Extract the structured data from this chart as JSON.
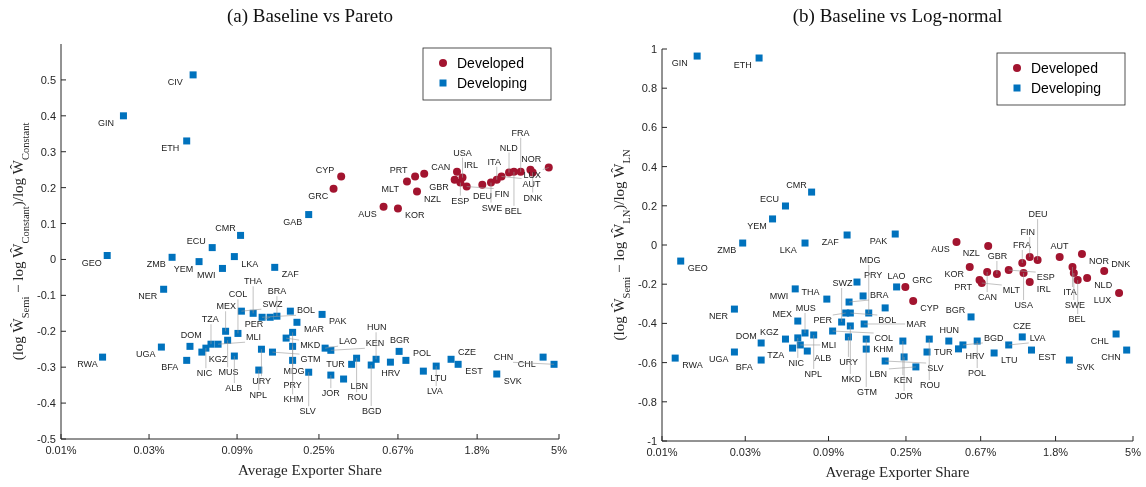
{
  "chart_data": [
    {
      "type": "scatter",
      "title": "(a) Baseline vs Pareto",
      "xlabel": "Average Exporter Share",
      "ylabel": "(log Ŵ$_{Semi}$ − log Ŵ$_{Constant}$)/log Ŵ$_{Constant}$",
      "log": "x",
      "legend": "top right",
      "grid": false,
      "xlim": [
        0.01,
        5
      ],
      "xticks": [
        {
          "value": 0.01,
          "label": "0.01%"
        },
        {
          "value": 0.03,
          "label": "0.03%"
        },
        {
          "value": 0.09,
          "label": "0.09%"
        },
        {
          "value": 0.25,
          "label": "0.25%"
        },
        {
          "value": 0.67,
          "label": "0.67%"
        },
        {
          "value": 1.8,
          "label": "1.8%"
        },
        {
          "value": 5,
          "label": "5%"
        }
      ],
      "ylim": [
        -0.5,
        0.6
      ],
      "yticks": [
        -0.5,
        -0.4,
        -0.3,
        -0.2,
        -0.1,
        0,
        0.1,
        0.2,
        0.3,
        0.4,
        0.5
      ],
      "series": [
        {
          "name": "Developed",
          "color": "#a2142f",
          "marker": "circle",
          "x": [
            0.33,
            0.3,
            0.56,
            0.67,
            0.85,
            0.75,
            0.83,
            0.93,
            1.4,
            1.36,
            1.46,
            1.5,
            1.58,
            1.92,
            2.14,
            2.3,
            2.44,
            2.68,
            2.85,
            3.5,
            3.1,
            3.6,
            4.4
          ],
          "values": [
            0.231,
            0.197,
            0.147,
            0.142,
            0.189,
            0.217,
            0.231,
            0.239,
            0.244,
            0.222,
            0.214,
            0.228,
            0.203,
            0.208,
            0.214,
            0.222,
            0.231,
            0.242,
            0.244,
            0.25,
            0.244,
            0.242,
            0.256
          ]
        },
        {
          "name": "Developing",
          "color": "#0072bd",
          "marker": "square",
          "x": [
            0.052,
            0.0218,
            0.048,
            0.22,
            0.094,
            0.066,
            0.087,
            0.0178,
            0.04,
            0.056,
            0.075,
            0.144,
            0.036,
            0.0168,
            0.035,
            0.05,
            0.048,
            0.058,
            0.061,
            0.065,
            0.071,
            0.078,
            0.08,
            0.087,
            0.091,
            0.095,
            0.11,
            0.123,
            0.136,
            0.148,
            0.175,
            0.19,
            0.26,
            0.18,
            0.166,
            0.18,
            0.14,
            0.122,
            0.118,
            0.18,
            0.27,
            0.29,
            0.22,
            0.29,
            0.34,
            0.4,
            0.376,
            0.51,
            0.48,
            0.61,
            0.74,
            0.68,
            0.92,
            1.08,
            1.3,
            1.42,
            2.3,
            4.1,
            4.7
          ],
          "values": [
            0.514,
            0.4,
            0.33,
            0.125,
            0.067,
            0.033,
            0.008,
            0.011,
            0.006,
            -0.006,
            -0.025,
            -0.022,
            -0.083,
            -0.272,
            -0.244,
            -0.242,
            -0.281,
            -0.258,
            -0.247,
            -0.236,
            -0.236,
            -0.2,
            -0.225,
            -0.269,
            -0.206,
            -0.144,
            -0.15,
            -0.161,
            -0.161,
            -0.158,
            -0.144,
            -0.175,
            -0.153,
            -0.203,
            -0.219,
            -0.242,
            -0.258,
            -0.25,
            -0.308,
            -0.281,
            -0.247,
            -0.253,
            -0.314,
            -0.322,
            -0.333,
            -0.275,
            -0.292,
            -0.278,
            -0.294,
            -0.286,
            -0.281,
            -0.256,
            -0.311,
            -0.297,
            -0.278,
            -0.292,
            -0.319,
            -0.272,
            -0.292
          ]
        }
      ],
      "annotations": [
        {
          "text": "CYP",
          "x": 0.33,
          "y": 0.231
        },
        {
          "text": "GRC",
          "x": 0.3,
          "y": 0.197
        },
        {
          "text": "AUS",
          "x": 0.56,
          "y": 0.147
        },
        {
          "text": "KOR",
          "x": 0.67,
          "y": 0.142
        },
        {
          "text": "NZL",
          "x": 0.85,
          "y": 0.189
        },
        {
          "text": "MLT",
          "x": 0.75,
          "y": 0.217
        },
        {
          "text": "PRT",
          "x": 0.83,
          "y": 0.231
        },
        {
          "text": "CAN",
          "x": 0.93,
          "y": 0.239
        },
        {
          "text": "IRL",
          "x": 1.4,
          "y": 0.244
        },
        {
          "text": "GBR",
          "x": 1.36,
          "y": 0.222
        },
        {
          "text": "ESP",
          "x": 1.46,
          "y": 0.214
        },
        {
          "text": "USA",
          "x": 1.5,
          "y": 0.228
        },
        {
          "text": "FIN",
          "x": 1.58,
          "y": 0.203
        },
        {
          "text": "DEU",
          "x": 1.92,
          "y": 0.208
        },
        {
          "text": "SWE",
          "x": 2.14,
          "y": 0.214
        },
        {
          "text": "ITA",
          "x": 2.3,
          "y": 0.222
        },
        {
          "text": "AUT",
          "x": 2.44,
          "y": 0.231
        },
        {
          "text": "NLD",
          "x": 2.68,
          "y": 0.242
        },
        {
          "text": "BEL",
          "x": 2.85,
          "y": 0.244
        },
        {
          "text": "NOR",
          "x": 3.5,
          "y": 0.25
        },
        {
          "text": "FRA",
          "x": 3.1,
          "y": 0.244
        },
        {
          "text": "DNK",
          "x": 3.6,
          "y": 0.242
        },
        {
          "text": "LUX",
          "x": 4.4,
          "y": 0.256
        },
        {
          "text": "CIV",
          "x": 0.052,
          "y": 0.514
        },
        {
          "text": "GIN",
          "x": 0.0218,
          "y": 0.4
        },
        {
          "text": "ETH",
          "x": 0.048,
          "y": 0.33
        },
        {
          "text": "GAB",
          "x": 0.22,
          "y": 0.125
        },
        {
          "text": "CMR",
          "x": 0.094,
          "y": 0.067
        },
        {
          "text": "ECU",
          "x": 0.066,
          "y": 0.033
        },
        {
          "text": "LKA",
          "x": 0.087,
          "y": 0.008
        },
        {
          "text": "GEO",
          "x": 0.0178,
          "y": 0.011
        },
        {
          "text": "ZMB",
          "x": 0.04,
          "y": 0.006
        },
        {
          "text": "YEM",
          "x": 0.056,
          "y": -0.006
        },
        {
          "text": "MWI",
          "x": 0.075,
          "y": -0.025
        },
        {
          "text": "ZAF",
          "x": 0.144,
          "y": -0.022
        },
        {
          "text": "NER",
          "x": 0.036,
          "y": -0.083
        },
        {
          "text": "RWA",
          "x": 0.0168,
          "y": -0.272
        },
        {
          "text": "UGA",
          "x": 0.035,
          "y": -0.244
        },
        {
          "text": "DOM",
          "x": 0.05,
          "y": -0.242
        },
        {
          "text": "BFA",
          "x": 0.048,
          "y": -0.281
        },
        {
          "text": "KGZ",
          "x": 0.058,
          "y": -0.258
        },
        {
          "text": "NIC",
          "x": 0.061,
          "y": -0.247
        },
        {
          "text": "TZA",
          "x": 0.065,
          "y": -0.236
        },
        {
          "text": "MLI",
          "x": 0.071,
          "y": -0.236
        },
        {
          "text": "MEX",
          "x": 0.078,
          "y": -0.2
        },
        {
          "text": "MUS",
          "x": 0.08,
          "y": -0.225
        },
        {
          "text": "ALB",
          "x": 0.087,
          "y": -0.269
        },
        {
          "text": "COL",
          "x": 0.091,
          "y": -0.206
        },
        {
          "text": "SWZ",
          "x": 0.095,
          "y": -0.144
        },
        {
          "text": "THA",
          "x": 0.11,
          "y": -0.15
        },
        {
          "text": "BOL",
          "x": 0.123,
          "y": -0.161
        },
        {
          "text": "PER",
          "x": 0.136,
          "y": -0.161
        },
        {
          "text": "BRA",
          "x": 0.148,
          "y": -0.158
        },
        {
          "text": "MAR",
          "x": 0.19,
          "y": -0.175
        },
        {
          "text": "PAK",
          "x": 0.26,
          "y": -0.153
        },
        {
          "text": "MDG",
          "x": 0.18,
          "y": -0.203
        },
        {
          "text": "MKD",
          "x": 0.166,
          "y": -0.219
        },
        {
          "text": "PRY",
          "x": 0.18,
          "y": -0.242
        },
        {
          "text": "GTM",
          "x": 0.14,
          "y": -0.258
        },
        {
          "text": "URY",
          "x": 0.122,
          "y": -0.25
        },
        {
          "text": "NPL",
          "x": 0.118,
          "y": -0.308
        },
        {
          "text": "KHM",
          "x": 0.18,
          "y": -0.281
        },
        {
          "text": "LAO",
          "x": 0.27,
          "y": -0.247
        },
        {
          "text": "KEN",
          "x": 0.29,
          "y": -0.253
        },
        {
          "text": "SLV",
          "x": 0.22,
          "y": -0.314
        },
        {
          "text": "JOR",
          "x": 0.29,
          "y": -0.322
        },
        {
          "text": "LBN",
          "x": 0.34,
          "y": -0.333
        },
        {
          "text": "ROU",
          "x": 0.4,
          "y": -0.275
        },
        {
          "text": "TUR",
          "x": 0.376,
          "y": -0.292
        },
        {
          "text": "HUN",
          "x": 0.51,
          "y": -0.278
        },
        {
          "text": "BGD",
          "x": 0.48,
          "y": -0.294
        },
        {
          "text": "HRV",
          "x": 0.61,
          "y": -0.286
        },
        {
          "text": "POL",
          "x": 0.74,
          "y": -0.281
        },
        {
          "text": "BGR",
          "x": 0.68,
          "y": -0.256
        },
        {
          "text": "LTU",
          "x": 0.92,
          "y": -0.311
        },
        {
          "text": "LVA",
          "x": 1.08,
          "y": -0.297
        },
        {
          "text": "CZE",
          "x": 1.3,
          "y": -0.278
        },
        {
          "text": "EST",
          "x": 1.42,
          "y": -0.292
        },
        {
          "text": "SVK",
          "x": 2.3,
          "y": -0.319
        },
        {
          "text": "CHL",
          "x": 4.1,
          "y": -0.272
        },
        {
          "text": "CHN",
          "x": 4.7,
          "y": -0.292
        }
      ]
    },
    {
      "type": "scatter",
      "title": "(b) Baseline vs Log-normal",
      "xlabel": "Average Exporter Share",
      "ylabel": "(log Ŵ$_{Semi}$ − log Ŵ$_{LN}$)/log Ŵ$_{LN}$",
      "log": "x",
      "legend": "top right",
      "grid": false,
      "xlim": [
        0.01,
        5
      ],
      "xticks": [
        {
          "value": 0.01,
          "label": "0.01%"
        },
        {
          "value": 0.03,
          "label": "0.03%"
        },
        {
          "value": 0.09,
          "label": "0.09%"
        },
        {
          "value": 0.25,
          "label": "0.25%"
        },
        {
          "value": 0.67,
          "label": "0.67%"
        },
        {
          "value": 1.8,
          "label": "1.8%"
        },
        {
          "value": 5,
          "label": "5%"
        }
      ],
      "ylim": [
        -1,
        1
      ],
      "yticks": [
        -1,
        -0.8,
        -0.6,
        -0.4,
        -0.2,
        0,
        0.2,
        0.4,
        0.6,
        0.8,
        1
      ],
      "series": [
        {
          "name": "Developed",
          "color": "#a2142f",
          "marker": "circle",
          "x": [
            0.487,
            0.74,
            0.58,
            0.66,
            0.73,
            0.68,
            0.83,
            0.97,
            1.18,
            1.16,
            1.28,
            1.28,
            1.42,
            1.9,
            2.55,
            2.25,
            2.29,
            2.41,
            2.73,
            3.42,
            4.16,
            0.248,
            0.275
          ],
          "values": [
            0.015,
            -0.005,
            -0.112,
            -0.179,
            -0.138,
            -0.194,
            -0.148,
            -0.128,
            -0.143,
            -0.092,
            -0.061,
            -0.189,
            -0.077,
            -0.061,
            -0.046,
            -0.112,
            -0.143,
            -0.179,
            -0.168,
            -0.133,
            -0.245,
            -0.214,
            -0.286
          ]
        },
        {
          "name": "Developing",
          "color": "#0072bd",
          "marker": "square",
          "x": [
            0.0159,
            0.036,
            0.072,
            0.051,
            0.043,
            0.029,
            0.066,
            0.115,
            0.217,
            0.0128,
            0.058,
            0.026,
            0.0119,
            0.026,
            0.037,
            0.037,
            0.051,
            0.056,
            0.068,
            0.06,
            0.062,
            0.066,
            0.06,
            0.074,
            0.095,
            0.117,
            0.088,
            0.113,
            0.118,
            0.12,
            0.107,
            0.131,
            0.144,
            0.12,
            0.153,
            0.142,
            0.221,
            0.19,
            0.148,
            0.148,
            0.24,
            0.19,
            0.244,
            0.285,
            0.34,
            0.33,
            0.44,
            0.53,
            0.5,
            0.64,
            0.59,
            0.8,
            0.97,
            1.16,
            1.31,
            2.16,
            4.0,
            4.6
          ],
          "values": [
            0.964,
            0.954,
            0.27,
            0.199,
            0.133,
            0.01,
            0.01,
            0.051,
            0.056,
            -0.082,
            -0.224,
            -0.327,
            -0.577,
            -0.546,
            -0.5,
            -0.587,
            -0.48,
            -0.526,
            -0.541,
            -0.474,
            -0.51,
            -0.449,
            -0.388,
            -0.459,
            -0.439,
            -0.469,
            -0.276,
            -0.347,
            -0.291,
            -0.347,
            -0.393,
            -0.189,
            -0.403,
            -0.413,
            -0.347,
            -0.26,
            -0.214,
            -0.321,
            -0.48,
            -0.531,
            -0.49,
            -0.592,
            -0.571,
            -0.622,
            -0.48,
            -0.546,
            -0.49,
            -0.51,
            -0.53,
            -0.49,
            -0.367,
            -0.551,
            -0.51,
            -0.469,
            -0.536,
            -0.587,
            -0.454,
            -0.536
          ]
        }
      ],
      "annotations": [
        {
          "text": "AUS",
          "x": 0.487,
          "y": 0.015
        },
        {
          "text": "NZL",
          "x": 0.74,
          "y": -0.005
        },
        {
          "text": "KOR",
          "x": 0.58,
          "y": -0.112
        },
        {
          "text": "PRT",
          "x": 0.66,
          "y": -0.179
        },
        {
          "text": "CAN",
          "x": 0.73,
          "y": -0.138
        },
        {
          "text": "MLT",
          "x": 0.68,
          "y": -0.194
        },
        {
          "text": "GBR",
          "x": 0.83,
          "y": -0.148
        },
        {
          "text": "ESP",
          "x": 0.97,
          "y": -0.128
        },
        {
          "text": "USA",
          "x": 1.18,
          "y": -0.143
        },
        {
          "text": "FRA",
          "x": 1.16,
          "y": -0.092
        },
        {
          "text": "FIN",
          "x": 1.28,
          "y": -0.061
        },
        {
          "text": "IRL",
          "x": 1.28,
          "y": -0.189
        },
        {
          "text": "DEU",
          "x": 1.42,
          "y": -0.077
        },
        {
          "text": "AUT",
          "x": 1.9,
          "y": -0.061
        },
        {
          "text": "NOR",
          "x": 2.55,
          "y": -0.046
        },
        {
          "text": "ITA",
          "x": 2.25,
          "y": -0.112
        },
        {
          "text": "SWE",
          "x": 2.29,
          "y": -0.143
        },
        {
          "text": "BEL",
          "x": 2.41,
          "y": -0.179
        },
        {
          "text": "NLD",
          "x": 2.73,
          "y": -0.168
        },
        {
          "text": "DNK",
          "x": 3.42,
          "y": -0.133
        },
        {
          "text": "LUX",
          "x": 4.16,
          "y": -0.245
        },
        {
          "text": "GRC",
          "x": 0.248,
          "y": -0.214
        },
        {
          "text": "CYP",
          "x": 0.275,
          "y": -0.286
        },
        {
          "text": "GIN",
          "x": 0.0159,
          "y": 0.964
        },
        {
          "text": "ETH",
          "x": 0.036,
          "y": 0.954
        },
        {
          "text": "CMR",
          "x": 0.072,
          "y": 0.27
        },
        {
          "text": "ECU",
          "x": 0.051,
          "y": 0.199
        },
        {
          "text": "YEM",
          "x": 0.043,
          "y": 0.133
        },
        {
          "text": "ZMB",
          "x": 0.029,
          "y": 0.01
        },
        {
          "text": "LKA",
          "x": 0.066,
          "y": 0.01
        },
        {
          "text": "ZAF",
          "x": 0.115,
          "y": 0.051
        },
        {
          "text": "PAK",
          "x": 0.217,
          "y": 0.056
        },
        {
          "text": "GEO",
          "x": 0.0128,
          "y": -0.082
        },
        {
          "text": "MWI",
          "x": 0.058,
          "y": -0.224
        },
        {
          "text": "NER",
          "x": 0.026,
          "y": -0.327
        },
        {
          "text": "RWA",
          "x": 0.0119,
          "y": -0.577
        },
        {
          "text": "UGA",
          "x": 0.026,
          "y": -0.546
        },
        {
          "text": "DOM",
          "x": 0.037,
          "y": -0.5
        },
        {
          "text": "BFA",
          "x": 0.037,
          "y": -0.587
        },
        {
          "text": "KGZ",
          "x": 0.051,
          "y": -0.48
        },
        {
          "text": "TZA",
          "x": 0.056,
          "y": -0.526
        },
        {
          "text": "ALB",
          "x": 0.068,
          "y": -0.541
        },
        {
          "text": "NIC",
          "x": 0.06,
          "y": -0.474
        },
        {
          "text": "MLI",
          "x": 0.062,
          "y": -0.51
        },
        {
          "text": "MUS",
          "x": 0.066,
          "y": -0.449
        },
        {
          "text": "MEX",
          "x": 0.06,
          "y": -0.388
        },
        {
          "text": "NPL",
          "x": 0.074,
          "y": -0.459
        },
        {
          "text": "COL",
          "x": 0.095,
          "y": -0.439
        },
        {
          "text": "URY",
          "x": 0.117,
          "y": -0.469
        },
        {
          "text": "THA",
          "x": 0.088,
          "y": -0.276
        },
        {
          "text": "PER",
          "x": 0.113,
          "y": -0.347
        },
        {
          "text": "BRA",
          "x": 0.118,
          "y": -0.291
        },
        {
          "text": "BOL",
          "x": 0.12,
          "y": -0.347
        },
        {
          "text": "SWZ",
          "x": 0.107,
          "y": -0.393
        },
        {
          "text": "PRY",
          "x": 0.131,
          "y": -0.189
        },
        {
          "text": "MAR",
          "x": 0.144,
          "y": -0.403
        },
        {
          "text": "MKD",
          "x": 0.12,
          "y": -0.413
        },
        {
          "text": "MDG",
          "x": 0.153,
          "y": -0.347
        },
        {
          "text": "LAO",
          "x": 0.221,
          "y": -0.214
        },
        {
          "text": "GTM",
          "x": 0.148,
          "y": -0.48
        },
        {
          "text": "KHM",
          "x": 0.148,
          "y": -0.531
        },
        {
          "text": "KEN",
          "x": 0.24,
          "y": -0.49
        },
        {
          "text": "SLV",
          "x": 0.19,
          "y": -0.592
        },
        {
          "text": "JOR",
          "x": 0.244,
          "y": -0.571
        },
        {
          "text": "LBN",
          "x": 0.285,
          "y": -0.622
        },
        {
          "text": "ROU",
          "x": 0.34,
          "y": -0.48
        },
        {
          "text": "TUR",
          "x": 0.33,
          "y": -0.546
        },
        {
          "text": "HUN",
          "x": 0.44,
          "y": -0.49
        },
        {
          "text": "BGD",
          "x": 0.53,
          "y": -0.51
        },
        {
          "text": "HRV",
          "x": 0.5,
          "y": -0.53
        },
        {
          "text": "POL",
          "x": 0.64,
          "y": -0.49
        },
        {
          "text": "BGR",
          "x": 0.59,
          "y": -0.367
        },
        {
          "text": "LTU",
          "x": 0.8,
          "y": -0.551
        },
        {
          "text": "LVA",
          "x": 0.97,
          "y": -0.51
        },
        {
          "text": "CZE",
          "x": 1.16,
          "y": -0.469
        },
        {
          "text": "EST",
          "x": 1.31,
          "y": -0.536
        },
        {
          "text": "SVK",
          "x": 2.16,
          "y": -0.587
        },
        {
          "text": "CHL",
          "x": 4.0,
          "y": -0.454
        },
        {
          "text": "CHN",
          "x": 4.6,
          "y": -0.536
        }
      ]
    }
  ]
}
